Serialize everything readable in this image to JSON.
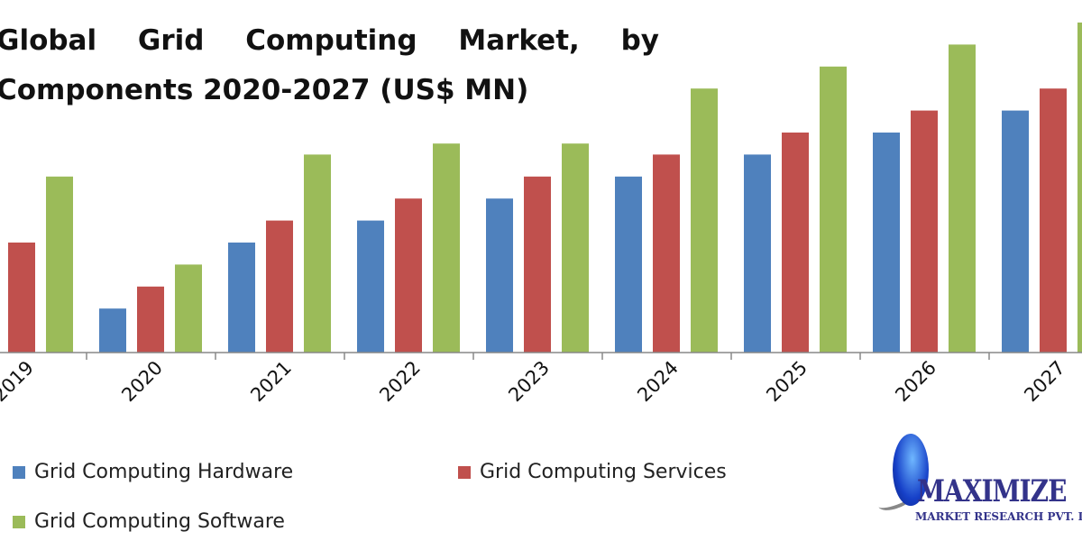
{
  "chart_data": {
    "type": "bar",
    "title": "Global Grid Computing Market, by Components 2020-2027 (US$ MN)",
    "title_line1_words": [
      "Global",
      "Grid",
      "Computing",
      "Market,",
      "by"
    ],
    "title_line2": "Components 2020-2027 (US$ MN)",
    "xlabel": "",
    "ylabel": "",
    "ylim": [
      0,
      16
    ],
    "grid": false,
    "legend_position": "bottom",
    "categories": [
      "2019",
      "2020",
      "2021",
      "2022",
      "2023",
      "2024",
      "2025",
      "2026",
      "2027"
    ],
    "series": [
      {
        "name": "Grid Computing Hardware",
        "color": "#4f81bd",
        "values": [
          null,
          2,
          5,
          6,
          7,
          8,
          9,
          10,
          11
        ]
      },
      {
        "name": "Grid Computing Services",
        "color": "#c0504d",
        "values": [
          5,
          3,
          6,
          7,
          8,
          9,
          10,
          11,
          12
        ]
      },
      {
        "name": "Grid Computing Software",
        "color": "#9bbb59",
        "values": [
          8,
          4,
          9,
          9.5,
          9.5,
          12,
          13,
          14,
          15
        ]
      }
    ],
    "note": "No value axis shown; values are relative estimates from bar heights"
  },
  "logo": {
    "brand": "MAXIMIZE",
    "subtitle": "MARKET RESEARCH PVT. LTD."
  }
}
